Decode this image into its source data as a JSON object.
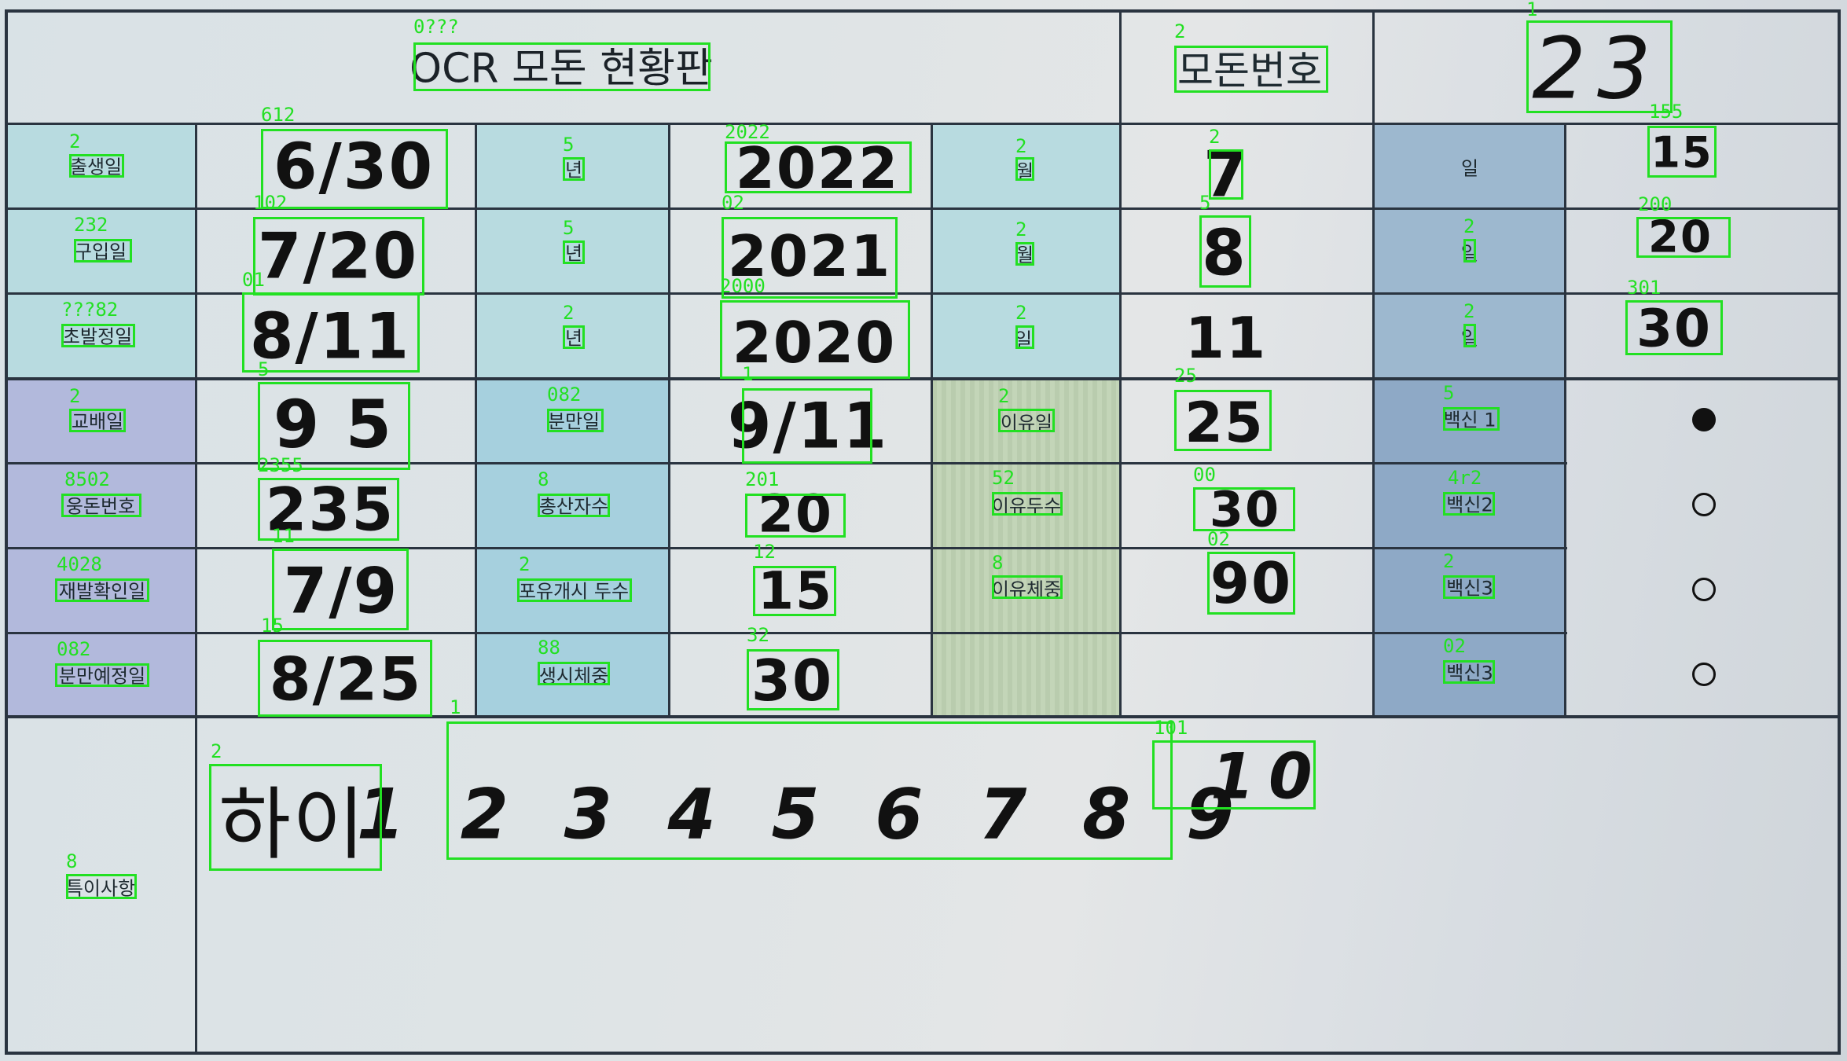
{
  "title": "OCR 모돈 현황판",
  "header": {
    "modon_label": "모돈번호",
    "modon_value": "23"
  },
  "labels": {
    "birth": "출생일",
    "purchase": "구입일",
    "first_estrus": "초발정일",
    "mating": "교배일",
    "boar_no": "웅돈번호",
    "recheck": "재발확인일",
    "expected_farrow": "분만예정일",
    "year1": "년",
    "year2": "년",
    "year3": "년",
    "month1": "월",
    "month2": "월",
    "day3": "일",
    "farrow_date": "분만일",
    "total_born": "총산자수",
    "suckling_start": "포유개시 두수",
    "birth_weight": "생시체중",
    "wean_date": "이유일",
    "weaned_count": "이유두수",
    "wean_weight": "이유체중",
    "day_r1": "일",
    "day_r2": "일",
    "day_r3": "일",
    "vaccine1": "백신 1",
    "vaccine2": "백신2",
    "vaccine3a": "백신3",
    "vaccine3b": "백신3",
    "remarks": "특이사항"
  },
  "values": {
    "birth_md": "6/30",
    "purchase_md": "7/20",
    "first_estrus_md": "8/11",
    "mating_md": "9 5",
    "boar_no": "235",
    "recheck_md": "7/9",
    "expected_md": "8/25",
    "year_a": "2022",
    "year_b": "2021",
    "year_c": "2020",
    "farrow_md": "9/11",
    "total_born": "20",
    "suckling_start": "15",
    "birth_weight": "30",
    "month_a": "7",
    "month_b": "8",
    "day_c": "11",
    "wean_date": "25",
    "weaned_count": "30",
    "wean_weight": "90",
    "day_r1": "15",
    "day_r2": "20",
    "day_r3": "30",
    "remarks_text": "하이",
    "remarks_numbers": "1 2 3 4 5 6 7 8 9",
    "remarks_ten": "10"
  },
  "vaccines": [
    {
      "filled": true
    },
    {
      "filled": false
    },
    {
      "filled": false
    },
    {
      "filled": false
    }
  ],
  "ocr_tags": {
    "title": "0???",
    "modon_label": "2",
    "modon_value": "1",
    "birth": "2",
    "birth_md": "612",
    "year1": "5",
    "year_a": "2022",
    "month1": "2",
    "month_a": "2",
    "day_r1": "155",
    "purchase": "232",
    "purchase_md": "102",
    "year2": "5",
    "year_b": "02",
    "month2": "2",
    "month_b": "5",
    "day_r2_label": "2",
    "day_r2": "200",
    "first_estrus": "???82",
    "first_estrus_md": "01",
    "year3": "2",
    "year_c": "2000",
    "day3": "2",
    "day_r3_label": "2",
    "day_r3": "301",
    "mating": "2",
    "mating_md": "5",
    "farrow_date": "082",
    "farrow_md": "1",
    "wean_date_label": "2",
    "wean_date": "25",
    "vaccine1": "5",
    "boar": "8502",
    "boar_no": "2355",
    "total_born_label": "8",
    "total_born": "201",
    "weaned_label": "52",
    "weaned_count": "00",
    "vaccine2": "4r2",
    "recheck": "4028",
    "recheck_md": "11",
    "suckling_label": "2",
    "suckling": "12",
    "wean_weight_label": "8",
    "wean_weight": "02",
    "vaccine3a": "2",
    "expected": "082",
    "expected_md": "15",
    "birth_weight_label": "88",
    "birth_weight": "32",
    "vaccine3b": "02",
    "remarks_numbers": "1",
    "remarks_text": "2",
    "remarks_ten": "101",
    "remarks": "8"
  }
}
